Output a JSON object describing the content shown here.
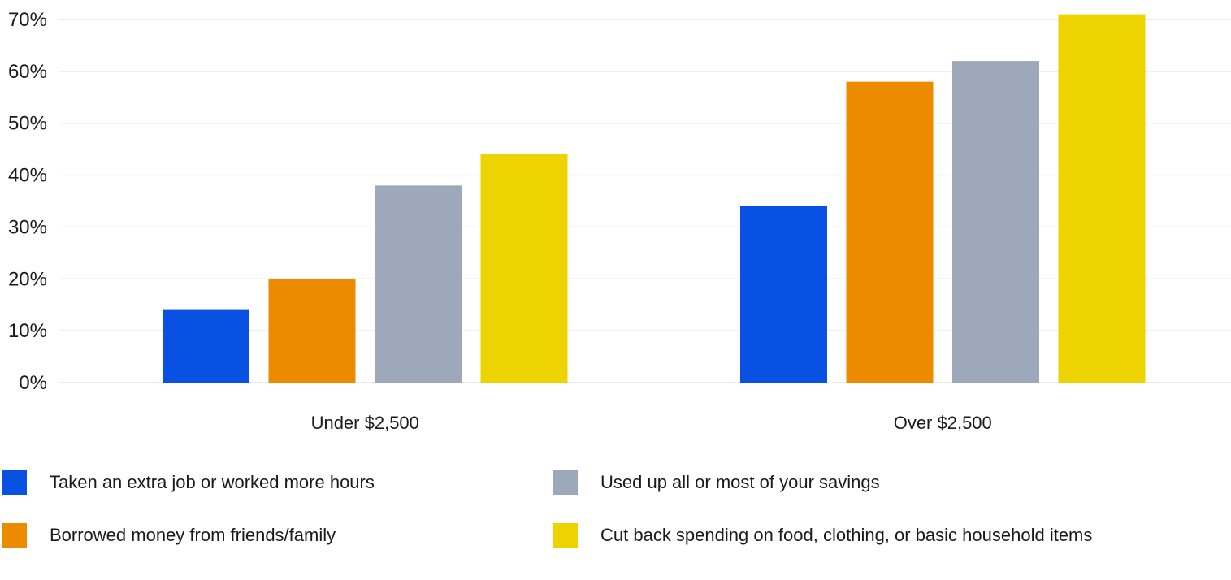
{
  "chart_data": {
    "type": "bar",
    "title": "",
    "xlabel": "",
    "ylabel": "",
    "categories": [
      "Under $2,500",
      "Over $2,500"
    ],
    "series": [
      {
        "name": "Taken an extra job or worked more hours",
        "color": "#0851e3",
        "values": [
          14,
          34
        ]
      },
      {
        "name": "Borrowed money from friends/family",
        "color": "#ec8a00",
        "values": [
          20,
          58
        ]
      },
      {
        "name": "Used up all or most of your savings",
        "color": "#9da9bb",
        "values": [
          38,
          62
        ]
      },
      {
        "name": "Cut back spending on food, clothing, or basic household items",
        "color": "#edd300",
        "values": [
          44,
          71
        ]
      }
    ],
    "ylim": [
      0,
      70
    ],
    "yticks": [
      0,
      10,
      20,
      30,
      40,
      50,
      60,
      70
    ],
    "ytick_labels": [
      "0%",
      "10%",
      "20%",
      "30%",
      "40%",
      "50%",
      "60%",
      "70%"
    ],
    "grid": true,
    "gridline_color": "#d9d9d9",
    "legend_position": "bottom"
  }
}
